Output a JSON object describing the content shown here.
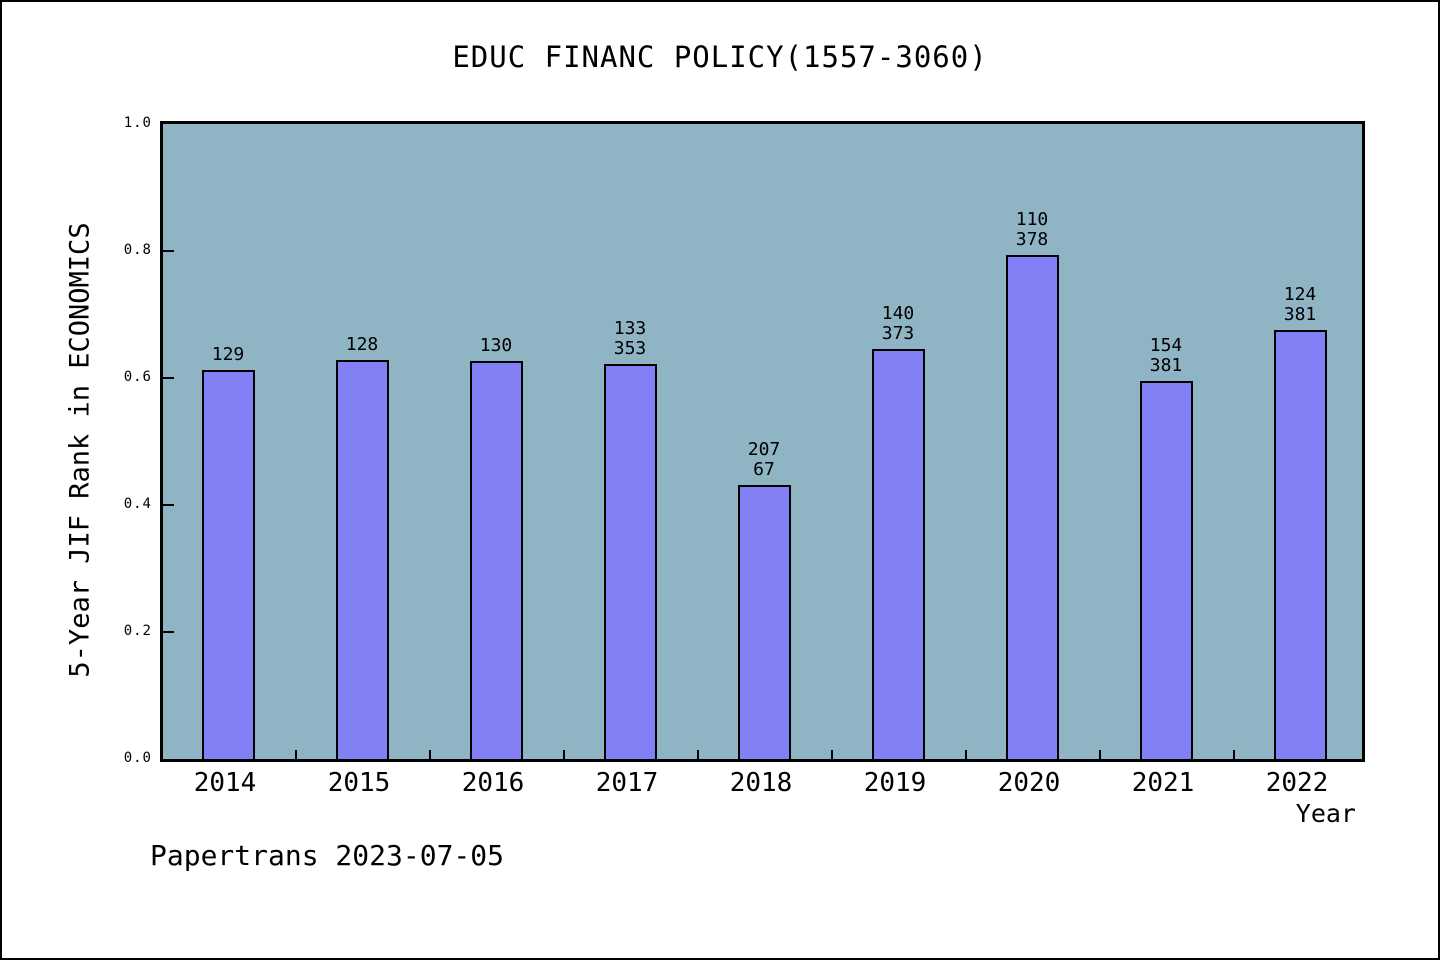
{
  "frame": {
    "watermark": "Papertrans 2023-07-05"
  },
  "chart_data": {
    "type": "bar",
    "title": "EDUC FINANC POLICY(1557-3060)",
    "xlabel": "Year",
    "ylabel": "5-Year JIF Rank in ECONOMICS",
    "categories": [
      "2014",
      "2015",
      "2016",
      "2017",
      "2018",
      "2019",
      "2020",
      "2021",
      "2022"
    ],
    "values": [
      0.613,
      0.629,
      0.626,
      0.622,
      0.431,
      0.645,
      0.793,
      0.596,
      0.676
    ],
    "annotations": [
      [
        "129"
      ],
      [
        "128"
      ],
      [
        "130"
      ],
      [
        "133",
        "353"
      ],
      [
        "207",
        "67"
      ],
      [
        "140",
        "373"
      ],
      [
        "110",
        "378"
      ],
      [
        "154",
        "381"
      ],
      [
        "124",
        "381"
      ]
    ],
    "yticks": [
      "0.0",
      "0.2",
      "0.4",
      "0.6",
      "0.8",
      "1.0"
    ],
    "ylim": [
      0,
      1
    ],
    "grid": false,
    "legend_position": "none",
    "colors": {
      "bar_fill": "#8181F5",
      "bar_edge": "#000000",
      "plot_bg": "#8FB5C4",
      "page_bg": "#FFFFFF",
      "text": "#000000"
    }
  }
}
